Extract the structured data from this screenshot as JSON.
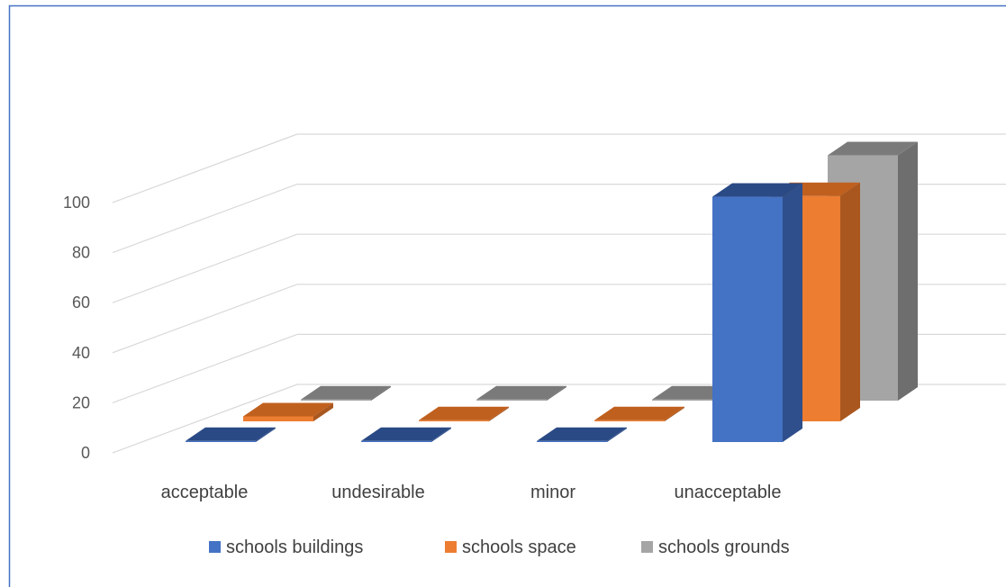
{
  "chart_data": {
    "type": "bar",
    "categories": [
      "acceptable",
      "undesirable",
      "minor",
      "unacceptable"
    ],
    "series": [
      {
        "name": "schools buildings",
        "values": [
          0,
          0,
          0,
          98
        ]
      },
      {
        "name": "schools space",
        "values": [
          2,
          0,
          0,
          90
        ]
      },
      {
        "name": "schools grounds",
        "values": [
          0,
          0,
          0,
          98
        ]
      }
    ],
    "yticks": [
      "0",
      "20",
      "40",
      "60",
      "80",
      "100"
    ],
    "ylim": [
      0,
      100
    ],
    "grid": true,
    "legend_position": "bottom",
    "colors": {
      "schools buildings": {
        "front": "#4472c4",
        "side": "#2f4f8c",
        "top": "#2a4a85"
      },
      "schools space": {
        "front": "#ed7d31",
        "side": "#a9571f",
        "top": "#c0601e"
      },
      "schools grounds": {
        "front": "#a5a5a5",
        "side": "#6e6e6e",
        "top": "#7a7a7a"
      }
    },
    "frame_color": "#4472c4",
    "grid_color": "#d9d9d9"
  }
}
